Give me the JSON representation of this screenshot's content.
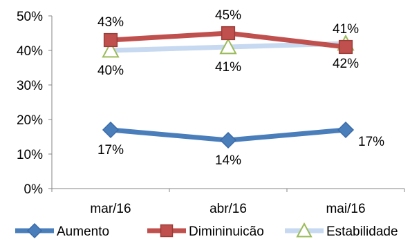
{
  "chart_data": {
    "type": "line",
    "categories": [
      "mar/16",
      "abr/16",
      "mai/16"
    ],
    "ylim": [
      0,
      50
    ],
    "yticks": [
      0,
      10,
      20,
      30,
      40,
      50
    ],
    "ytick_labels": [
      "0%",
      "10%",
      "20%",
      "30%",
      "40%",
      "50%"
    ],
    "grid": false,
    "legend_position": "bottom",
    "series": [
      {
        "name": "Aumento",
        "values": [
          17,
          14,
          17
        ],
        "labels": [
          "17%",
          "14%",
          "17%"
        ],
        "color": "#4a7ebb",
        "marker": "diamond",
        "label_side": [
          "below",
          "below",
          "right"
        ]
      },
      {
        "name": "Dimininuicão",
        "values": [
          43,
          45,
          41
        ],
        "labels": [
          "43%",
          "45%",
          "41%"
        ],
        "color": "#c0504d",
        "marker": "square",
        "label_side": [
          "above",
          "above",
          "above"
        ]
      },
      {
        "name": "Estabilidade",
        "values": [
          40,
          41,
          42
        ],
        "labels": [
          "40%",
          "41%",
          "42%"
        ],
        "color": "#c6d9f1",
        "marker": "triangle",
        "label_side": [
          "below",
          "below",
          "below"
        ]
      }
    ]
  }
}
